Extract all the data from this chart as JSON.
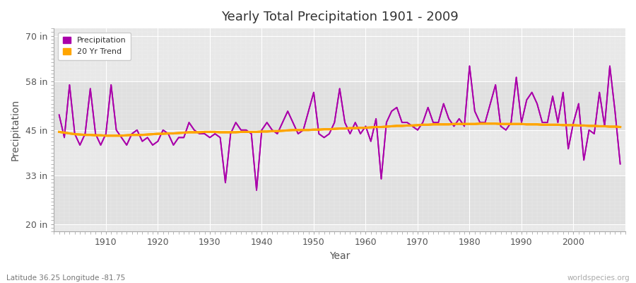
{
  "title": "Yearly Total Precipitation 1901 - 2009",
  "xlabel": "Year",
  "ylabel": "Precipitation",
  "subtitle": "Latitude 36.25 Longitude -81.75",
  "watermark": "worldspecies.org",
  "years": [
    1901,
    1902,
    1903,
    1904,
    1905,
    1906,
    1907,
    1908,
    1909,
    1910,
    1911,
    1912,
    1913,
    1914,
    1915,
    1916,
    1917,
    1918,
    1919,
    1920,
    1921,
    1922,
    1923,
    1924,
    1925,
    1926,
    1927,
    1928,
    1929,
    1930,
    1931,
    1932,
    1933,
    1934,
    1935,
    1936,
    1937,
    1938,
    1939,
    1940,
    1941,
    1942,
    1943,
    1944,
    1945,
    1946,
    1947,
    1948,
    1949,
    1950,
    1951,
    1952,
    1953,
    1954,
    1955,
    1956,
    1957,
    1958,
    1959,
    1960,
    1961,
    1962,
    1963,
    1964,
    1965,
    1966,
    1967,
    1968,
    1969,
    1970,
    1971,
    1972,
    1973,
    1974,
    1975,
    1976,
    1977,
    1978,
    1979,
    1980,
    1981,
    1982,
    1983,
    1984,
    1985,
    1986,
    1987,
    1988,
    1989,
    1990,
    1991,
    1992,
    1993,
    1994,
    1995,
    1996,
    1997,
    1998,
    1999,
    2000,
    2001,
    2002,
    2003,
    2004,
    2005,
    2006,
    2007,
    2008,
    2009
  ],
  "precipitation": [
    49,
    43,
    57,
    44,
    41,
    44,
    56,
    44,
    41,
    44,
    57,
    45,
    43,
    41,
    44,
    45,
    42,
    43,
    41,
    42,
    45,
    44,
    41,
    43,
    43,
    47,
    45,
    44,
    44,
    43,
    44,
    43,
    31,
    44,
    47,
    45,
    45,
    44,
    29,
    45,
    47,
    45,
    44,
    47,
    50,
    47,
    44,
    45,
    50,
    55,
    44,
    43,
    44,
    47,
    56,
    47,
    44,
    47,
    44,
    46,
    42,
    48,
    32,
    47,
    50,
    51,
    47,
    47,
    46,
    45,
    47,
    51,
    47,
    47,
    52,
    48,
    46,
    48,
    46,
    62,
    50,
    47,
    47,
    52,
    57,
    46,
    45,
    47,
    59,
    47,
    53,
    55,
    52,
    47,
    47,
    54,
    47,
    55,
    40,
    47,
    52,
    37,
    45,
    44,
    55,
    46,
    62,
    50,
    36
  ],
  "trend": [
    44.5,
    44.3,
    44.1,
    43.9,
    43.8,
    43.7,
    43.7,
    43.6,
    43.6,
    43.5,
    43.5,
    43.5,
    43.5,
    43.6,
    43.7,
    43.7,
    43.7,
    43.8,
    43.9,
    44.0,
    44.0,
    44.1,
    44.1,
    44.2,
    44.3,
    44.4,
    44.4,
    44.4,
    44.5,
    44.5,
    44.5,
    44.4,
    44.4,
    44.4,
    44.4,
    44.5,
    44.5,
    44.5,
    44.5,
    44.6,
    44.6,
    44.7,
    44.7,
    44.8,
    44.9,
    45.0,
    45.0,
    45.0,
    45.0,
    45.1,
    45.1,
    45.2,
    45.2,
    45.3,
    45.4,
    45.4,
    45.5,
    45.5,
    45.6,
    45.6,
    45.7,
    45.8,
    45.8,
    45.9,
    46.0,
    46.1,
    46.1,
    46.2,
    46.2,
    46.3,
    46.4,
    46.4,
    46.5,
    46.5,
    46.5,
    46.5,
    46.6,
    46.6,
    46.6,
    46.6,
    46.6,
    46.7,
    46.7,
    46.7,
    46.7,
    46.6,
    46.6,
    46.6,
    46.6,
    46.6,
    46.5,
    46.5,
    46.5,
    46.4,
    46.4,
    46.4,
    46.4,
    46.3,
    46.3,
    46.3,
    46.2,
    46.2,
    46.1,
    46.1,
    46.0,
    46.0,
    45.9,
    45.9,
    45.8
  ],
  "precip_color": "#aa00aa",
  "trend_color": "#FFA500",
  "bg_color": "#ffffff",
  "plot_bg_color": "#e8e8e8",
  "grid_color": "#ffffff",
  "yticks": [
    20,
    33,
    45,
    58,
    70
  ],
  "ytick_labels": [
    "20 in",
    "33 in",
    "45 in",
    "58 in",
    "70 in"
  ],
  "xticks": [
    1910,
    1920,
    1930,
    1940,
    1950,
    1960,
    1970,
    1980,
    1990,
    2000
  ],
  "ylim": [
    18,
    72
  ],
  "xlim": [
    1900,
    2010
  ]
}
